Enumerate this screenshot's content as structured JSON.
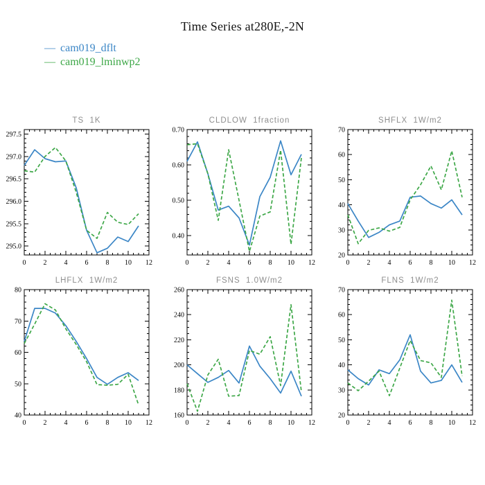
{
  "page": {
    "title": "Time Series at280E,-2N",
    "background": "#ffffff"
  },
  "colors": {
    "run1": "#3b86c6",
    "run2": "#3da747",
    "subplot_title": "#8e8e8e",
    "axis": "#000000"
  },
  "legend": {
    "items": [
      {
        "marker": "—",
        "label": "cam019_dflt",
        "color": "#3b86c6"
      },
      {
        "marker": "—",
        "label": "cam019_lminwp2",
        "color": "#3da747"
      }
    ]
  },
  "chart_data": [
    {
      "type": "line",
      "name": "TS",
      "title": "TS  1K",
      "xlim": [
        0,
        12
      ],
      "ylim": [
        294.8,
        297.6
      ],
      "xticks": [
        0,
        2,
        4,
        6,
        8,
        10,
        12
      ],
      "xtick_labels": [
        "0",
        "2",
        "4",
        "6",
        "8",
        "10",
        "12"
      ],
      "x_minor_step": 0.5,
      "yticks": [
        295.0,
        295.5,
        296.0,
        296.5,
        297.0,
        297.5
      ],
      "ytick_labels": [
        "295.0",
        "295.5",
        "296.0",
        "296.5",
        "297.0",
        "297.5"
      ],
      "y_minor_step": 0.1,
      "x": [
        0,
        1,
        2,
        3,
        4,
        5,
        6,
        7,
        8,
        9,
        10,
        11
      ],
      "series": [
        {
          "name": "cam019_dflt",
          "color": "#3b86c6",
          "dashed": false,
          "values": [
            296.8,
            297.15,
            296.95,
            296.88,
            296.9,
            296.3,
            295.35,
            294.85,
            294.95,
            295.2,
            295.1,
            295.45
          ]
        },
        {
          "name": "cam019_lminwp2",
          "color": "#3da747",
          "dashed": true,
          "values": [
            296.68,
            296.65,
            297.0,
            297.2,
            296.9,
            296.2,
            295.35,
            295.17,
            295.75,
            295.53,
            295.48,
            295.72
          ]
        }
      ]
    },
    {
      "type": "line",
      "name": "CLDLOW",
      "title": "CLDLOW  1fraction",
      "xlim": [
        0,
        12
      ],
      "ylim": [
        0.345,
        0.7
      ],
      "xticks": [
        0,
        2,
        4,
        6,
        8,
        10,
        12
      ],
      "xtick_labels": [
        "0",
        "2",
        "4",
        "6",
        "8",
        "10",
        "12"
      ],
      "x_minor_step": 0.5,
      "yticks": [
        0.4,
        0.5,
        0.6,
        0.7
      ],
      "ytick_labels": [
        "0.40",
        "0.50",
        "0.60",
        "0.70"
      ],
      "y_minor_step": 0.02,
      "x": [
        0,
        1,
        2,
        3,
        4,
        5,
        6,
        7,
        8,
        9,
        10,
        11
      ],
      "series": [
        {
          "name": "cam019_dflt",
          "color": "#3b86c6",
          "dashed": false,
          "values": [
            0.61,
            0.665,
            0.575,
            0.472,
            0.483,
            0.45,
            0.373,
            0.51,
            0.565,
            0.668,
            0.572,
            0.63
          ]
        },
        {
          "name": "cam019_lminwp2",
          "color": "#3da747",
          "dashed": true,
          "values": [
            0.657,
            0.66,
            0.575,
            0.443,
            0.643,
            0.5,
            0.355,
            0.455,
            0.467,
            0.642,
            0.375,
            0.62
          ]
        }
      ]
    },
    {
      "type": "line",
      "name": "SHFLX",
      "title": "SHFLX  1W/m2",
      "xlim": [
        0,
        12
      ],
      "ylim": [
        20,
        70
      ],
      "xticks": [
        0,
        2,
        4,
        6,
        8,
        10,
        12
      ],
      "xtick_labels": [
        "0",
        "2",
        "4",
        "6",
        "8",
        "10",
        "12"
      ],
      "x_minor_step": 0.5,
      "yticks": [
        20,
        30,
        40,
        50,
        60,
        70
      ],
      "ytick_labels": [
        "20",
        "30",
        "40",
        "50",
        "60",
        "70"
      ],
      "y_minor_step": 2,
      "x": [
        0,
        1,
        2,
        3,
        4,
        5,
        6,
        7,
        8,
        9,
        10,
        11
      ],
      "series": [
        {
          "name": "cam019_dflt",
          "color": "#3b86c6",
          "dashed": false,
          "values": [
            40.5,
            33.5,
            27.0,
            29.0,
            32.0,
            33.5,
            43.0,
            43.5,
            40.5,
            38.7,
            42.0,
            36.0
          ]
        },
        {
          "name": "cam019_lminwp2",
          "color": "#3da747",
          "dashed": true,
          "values": [
            36.0,
            24.5,
            29.8,
            30.8,
            29.5,
            31.0,
            42.0,
            48.0,
            55.5,
            46.0,
            61.5,
            43.0
          ]
        }
      ]
    },
    {
      "type": "line",
      "name": "LHFLX",
      "title": "LHFLX  1W/m2",
      "xlim": [
        0,
        12
      ],
      "ylim": [
        40,
        80
      ],
      "xticks": [
        0,
        2,
        4,
        6,
        8,
        10,
        12
      ],
      "xtick_labels": [
        "0",
        "2",
        "4",
        "6",
        "8",
        "10",
        "12"
      ],
      "x_minor_step": 0.5,
      "yticks": [
        40,
        50,
        60,
        70,
        80
      ],
      "ytick_labels": [
        "40",
        "50",
        "60",
        "70",
        "80"
      ],
      "y_minor_step": 2,
      "x": [
        0,
        1,
        2,
        3,
        4,
        5,
        6,
        7,
        8,
        9,
        10,
        11
      ],
      "series": [
        {
          "name": "cam019_dflt",
          "color": "#3b86c6",
          "dashed": false,
          "values": [
            63.5,
            74.0,
            74.0,
            72.5,
            68.5,
            63.5,
            58.0,
            52.0,
            49.8,
            52.0,
            53.5,
            51.0
          ]
        },
        {
          "name": "cam019_lminwp2",
          "color": "#3da747",
          "dashed": true,
          "values": [
            62.8,
            69.0,
            75.5,
            73.5,
            67.5,
            62.5,
            57.0,
            49.7,
            49.5,
            49.8,
            53.0,
            43.2
          ]
        }
      ]
    },
    {
      "type": "line",
      "name": "FSNS",
      "title": "FSNS  1.0W/m2",
      "xlim": [
        0,
        12
      ],
      "ylim": [
        160,
        260
      ],
      "xticks": [
        0,
        2,
        4,
        6,
        8,
        10,
        12
      ],
      "xtick_labels": [
        "0",
        "2",
        "4",
        "6",
        "8",
        "10",
        "12"
      ],
      "x_minor_step": 0.5,
      "yticks": [
        160,
        180,
        200,
        220,
        240,
        260
      ],
      "ytick_labels": [
        "160",
        "180",
        "200",
        "220",
        "240",
        "260"
      ],
      "y_minor_step": 5,
      "x": [
        0,
        1,
        2,
        3,
        4,
        5,
        6,
        7,
        8,
        9,
        10,
        11
      ],
      "series": [
        {
          "name": "cam019_dflt",
          "color": "#3b86c6",
          "dashed": false,
          "values": [
            200,
            193,
            186,
            190,
            195.5,
            185.5,
            215,
            199,
            189,
            177.5,
            195,
            175
          ]
        },
        {
          "name": "cam019_lminwp2",
          "color": "#3da747",
          "dashed": true,
          "values": [
            185,
            163,
            192,
            204.5,
            175,
            175.5,
            211.5,
            208.5,
            222.5,
            183.5,
            248,
            178.5
          ]
        }
      ]
    },
    {
      "type": "line",
      "name": "FLNS",
      "title": "FLNS  1W/m2",
      "xlim": [
        0,
        12
      ],
      "ylim": [
        20,
        70
      ],
      "xticks": [
        0,
        2,
        4,
        6,
        8,
        10,
        12
      ],
      "xtick_labels": [
        "0",
        "2",
        "4",
        "6",
        "8",
        "10",
        "12"
      ],
      "x_minor_step": 0.5,
      "yticks": [
        20,
        30,
        40,
        50,
        60,
        70
      ],
      "ytick_labels": [
        "20",
        "30",
        "40",
        "50",
        "60",
        "70"
      ],
      "y_minor_step": 2,
      "x": [
        0,
        1,
        2,
        3,
        4,
        5,
        6,
        7,
        8,
        9,
        10,
        11
      ],
      "series": [
        {
          "name": "cam019_dflt",
          "color": "#3b86c6",
          "dashed": false,
          "values": [
            38,
            34.5,
            32,
            38,
            36.5,
            42,
            52,
            37.5,
            32.8,
            33.8,
            40,
            33
          ]
        },
        {
          "name": "cam019_lminwp2",
          "color": "#3da747",
          "dashed": true,
          "values": [
            32.8,
            29.7,
            33.5,
            37.5,
            27.7,
            38.7,
            49.7,
            41.7,
            40.8,
            35,
            65.8,
            35.5
          ]
        }
      ]
    }
  ]
}
